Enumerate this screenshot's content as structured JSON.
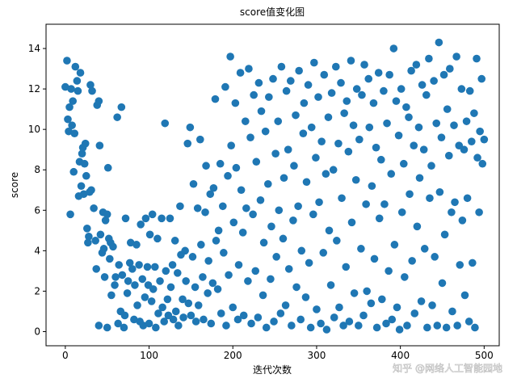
{
  "chart_data": {
    "type": "scatter",
    "title": "score值变化图",
    "xlabel": "迭代次数",
    "ylabel": "score",
    "watermark": "知乎 @网络人工智能园地",
    "color": "#1f77b4",
    "xlim": [
      -23,
      518
    ],
    "ylim": [
      -0.7,
      15.2
    ],
    "xticks": [
      0,
      100,
      200,
      300,
      400,
      500
    ],
    "yticks": [
      0,
      2,
      4,
      6,
      8,
      10,
      12,
      14
    ],
    "x": [
      0,
      2,
      3,
      4,
      5,
      6,
      7,
      8,
      9,
      10,
      11,
      12,
      14,
      15,
      16,
      17,
      18,
      19,
      20,
      21,
      22,
      23,
      24,
      25,
      26,
      27,
      28,
      29,
      30,
      31,
      32,
      34,
      36,
      37,
      38,
      40,
      40,
      41,
      42,
      44,
      45,
      46,
      47,
      48,
      50,
      50,
      51,
      52,
      53,
      54,
      55,
      57,
      59,
      60,
      62,
      63,
      64,
      66,
      67,
      68,
      70,
      71,
      72,
      74,
      75,
      77,
      78,
      80,
      82,
      83,
      85,
      86,
      88,
      89,
      90,
      92,
      93,
      95,
      96,
      98,
      99,
      100,
      101,
      103,
      104,
      105,
      107,
      108,
      110,
      111,
      113,
      115,
      116,
      118,
      119,
      120,
      122,
      123,
      125,
      126,
      128,
      129,
      131,
      132,
      134,
      135,
      137,
      138,
      140,
      141,
      143,
      144,
      146,
      147,
      149,
      150,
      152,
      153,
      155,
      156,
      158,
      159,
      161,
      162,
      164,
      165,
      167,
      168,
      170,
      171,
      173,
      174,
      176,
      177,
      179,
      180,
      182,
      183,
      185,
      186,
      188,
      189,
      191,
      192,
      194,
      195,
      197,
      198,
      200,
      201,
      203,
      204,
      206,
      207,
      209,
      210,
      212,
      213,
      215,
      216,
      218,
      219,
      221,
      222,
      224,
      225,
      227,
      228,
      230,
      231,
      233,
      234,
      236,
      237,
      239,
      240,
      242,
      243,
      245,
      246,
      248,
      249,
      251,
      252,
      254,
      255,
      257,
      258,
      260,
      261,
      263,
      264,
      266,
      267,
      269,
      270,
      272,
      273,
      275,
      276,
      278,
      279,
      281,
      282,
      284,
      285,
      287,
      288,
      290,
      291,
      293,
      294,
      296,
      297,
      299,
      300,
      302,
      303,
      305,
      306,
      308,
      309,
      311,
      312,
      314,
      315,
      317,
      318,
      320,
      321,
      323,
      324,
      326,
      327,
      329,
      330,
      332,
      333,
      335,
      336,
      338,
      339,
      341,
      342,
      344,
      345,
      347,
      348,
      350,
      351,
      353,
      354,
      356,
      357,
      359,
      360,
      362,
      363,
      365,
      366,
      368,
      369,
      371,
      372,
      374,
      375,
      377,
      378,
      380,
      381,
      383,
      384,
      386,
      387,
      389,
      390,
      392,
      393,
      395,
      396,
      398,
      399,
      401,
      402,
      404,
      405,
      407,
      408,
      410,
      411,
      413,
      414,
      416,
      417,
      419,
      420,
      422,
      423,
      425,
      426,
      428,
      429,
      431,
      432,
      434,
      435,
      437,
      438,
      440,
      441,
      443,
      444,
      446,
      447,
      449,
      450,
      452,
      453,
      455,
      456,
      458,
      459,
      461,
      462,
      464,
      465,
      467,
      468,
      470,
      471,
      473,
      474,
      476,
      477,
      479,
      480,
      482,
      483,
      485,
      486,
      488,
      489,
      491,
      492,
      494,
      495,
      497,
      498,
      500
    ],
    "values": [
      12.1,
      13.4,
      10.5,
      9.9,
      11.1,
      5.8,
      12.0,
      10.2,
      11.4,
      7.9,
      9.8,
      13.1,
      12.4,
      11.9,
      6.7,
      8.4,
      12.8,
      7.2,
      8.8,
      9.1,
      6.8,
      8.3,
      9.3,
      7.7,
      5.1,
      4.4,
      4.7,
      6.9,
      12.2,
      7.0,
      11.9,
      6.1,
      4.5,
      3.1,
      11.2,
      11.4,
      0.3,
      9.2,
      4.8,
      3.9,
      5.9,
      4.1,
      2.7,
      5.5,
      5.8,
      0.2,
      8.1,
      4.6,
      3.6,
      4.4,
      1.8,
      4.2,
      2.3,
      2.7,
      10.6,
      0.4,
      3.3,
      1.0,
      11.1,
      2.8,
      0.2,
      0.8,
      5.6,
      1.9,
      2.5,
      3.4,
      4.4,
      3.1,
      0.6,
      2.3,
      4.3,
      1.3,
      3.3,
      0.5,
      5.3,
      2.6,
      0.3,
      1.7,
      5.6,
      3.2,
      2.3,
      0.4,
      4.8,
      1.5,
      5.8,
      2.1,
      3.2,
      0.2,
      4.6,
      0.9,
      2.5,
      5.6,
      1.2,
      0.5,
      10.3,
      3.0,
      1.6,
      0.8,
      5.6,
      2.2,
      3.3,
      0.6,
      4.5,
      1.0,
      2.9,
      0.3,
      6.2,
      3.8,
      1.6,
      0.7,
      4.0,
      2.5,
      9.3,
      1.4,
      10.1,
      0.8,
      3.7,
      7.3,
      2.2,
      0.5,
      6.1,
      1.3,
      9.5,
      4.3,
      2.7,
      0.6,
      5.9,
      8.2,
      1.9,
      3.5,
      6.8,
      0.4,
      2.4,
      7.1,
      11.5,
      4.5,
      2.1,
      5.0,
      8.3,
      0.9,
      6.2,
      3.9,
      12.1,
      0.3,
      7.7,
      2.8,
      13.6,
      9.2,
      1.2,
      5.4,
      11.3,
      8.1,
      0.6,
      3.3,
      12.8,
      7.0,
      4.9,
      0.8,
      10.4,
      6.1,
      2.5,
      13.0,
      9.6,
      0.4,
      5.8,
      11.7,
      3.0,
      8.4,
      0.7,
      12.3,
      6.5,
      10.9,
      1.8,
      4.4,
      9.9,
      0.2,
      7.3,
      11.6,
      2.6,
      5.2,
      12.5,
      0.5,
      8.8,
      3.7,
      10.4,
      6.0,
      0.9,
      13.1,
      4.6,
      7.6,
      1.3,
      11.9,
      9.0,
      3.1,
      12.4,
      0.3,
      5.5,
      8.2,
      10.7,
      2.2,
      6.2,
      12.9,
      0.6,
      4.0,
      9.8,
      11.3,
      1.7,
      7.4,
      12.2,
      3.4,
      0.2,
      10.1,
      5.8,
      13.3,
      8.6,
      1.1,
      11.6,
      6.4,
      0.4,
      9.4,
      3.9,
      12.7,
      7.8,
      0.1,
      10.6,
      5.0,
      2.3,
      11.8,
      8.0,
      0.7,
      13.1,
      4.5,
      9.3,
      1.2,
      12.3,
      6.6,
      0.3,
      10.8,
      3.2,
      11.4,
      8.9,
      0.5,
      13.4,
      5.4,
      10.2,
      1.9,
      7.5,
      12.0,
      0.3,
      9.5,
      4.1,
      11.7,
      0.8,
      13.2,
      6.3,
      2.0,
      12.5,
      10.1,
      1.4,
      7.2,
      11.3,
      3.6,
      9.1,
      0.2,
      12.8,
      5.6,
      8.5,
      1.6,
      11.9,
      6.3,
      0.4,
      10.3,
      3.0,
      12.7,
      7.8,
      0.6,
      14.0,
      4.3,
      11.4,
      1.2,
      9.7,
      0.1,
      12.0,
      5.9,
      8.3,
      2.7,
      11.1,
      0.3,
      10.6,
      6.8,
      12.9,
      3.5,
      9.2,
      0.9,
      13.2,
      5.2,
      10.1,
      7.6,
      1.5,
      12.2,
      9.0,
      4.1,
      11.7,
      0.2,
      13.5,
      6.6,
      8.2,
      1.3,
      12.4,
      3.7,
      10.3,
      0.3,
      14.3,
      6.9,
      9.6,
      2.4,
      12.7,
      4.8,
      0.2,
      11.0,
      8.7,
      13.0,
      5.9,
      1.0,
      10.2,
      6.4,
      13.6,
      0.3,
      9.2,
      3.3,
      12.0,
      5.5,
      9.0,
      1.8,
      10.4,
      6.6,
      0.5,
      11.9,
      9.4,
      3.4,
      10.8,
      0.2,
      13.5,
      8.6,
      5.9,
      9.9,
      12.5,
      8.3,
      9.5
    ]
  }
}
